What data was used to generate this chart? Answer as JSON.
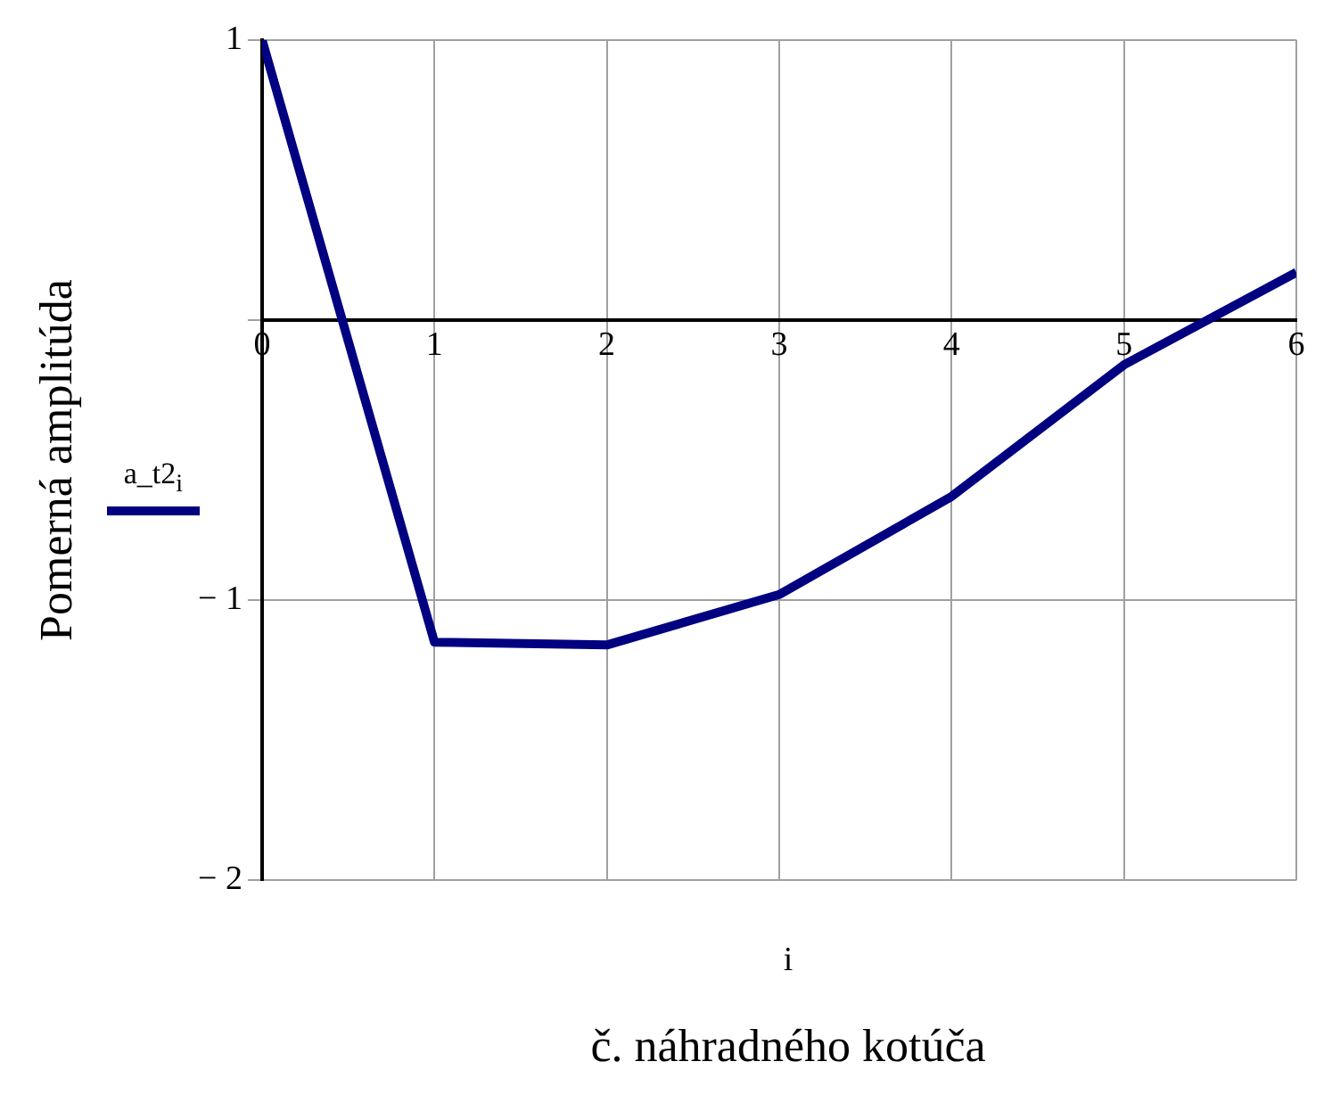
{
  "chart_data": {
    "type": "line",
    "xlabel": "č. náhradného kotúča",
    "ylabel": "Pomerná amplitúda",
    "annotations": [
      "i"
    ],
    "x": [
      0,
      1,
      2,
      3,
      4,
      5,
      6
    ],
    "series": [
      {
        "name": "a_t2$_{i}$",
        "color": "#000080",
        "values": [
          1,
          -1.15,
          -1.16,
          -0.98,
          -0.63,
          -0.16,
          0.17
        ]
      }
    ],
    "xlim": [
      0,
      6
    ],
    "xticks": [
      0,
      1,
      2,
      3,
      4,
      5,
      6
    ],
    "ylim": [
      -2,
      1
    ],
    "yticks": [
      {
        "value": -2,
        "label": "− 2"
      },
      {
        "value": -1,
        "label": "− 1"
      },
      {
        "value": 0,
        "label": null
      },
      1
    ],
    "grid": true,
    "legend": "left",
    "line_style": "solid",
    "marker": "none"
  }
}
